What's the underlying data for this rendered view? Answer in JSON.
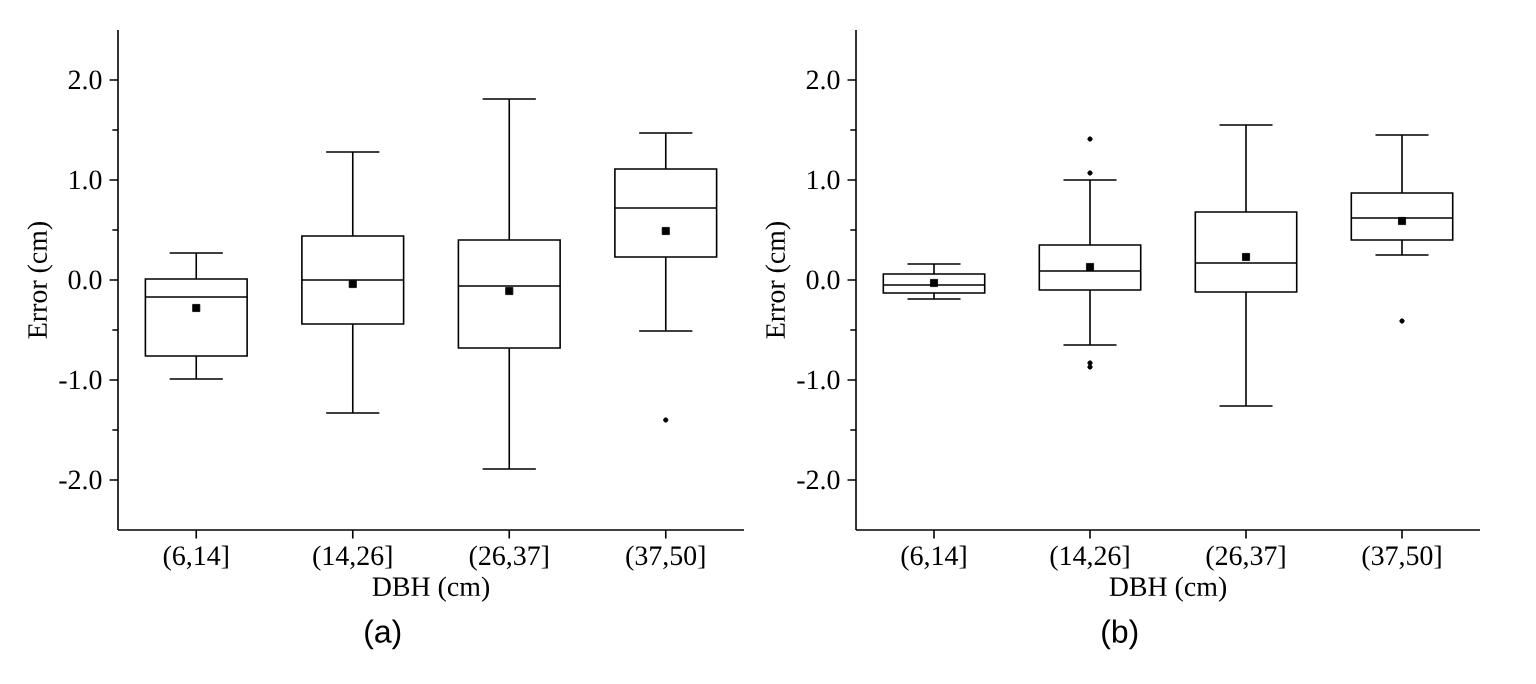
{
  "chart_data": [
    {
      "type": "box",
      "xlabel": "DBH (cm)",
      "ylabel": "Error (cm)",
      "annotations": [
        "(a)"
      ],
      "categories": [
        "(6,14]",
        "(14,26]",
        "(26,37]",
        "(37,50]"
      ],
      "boxes": [
        {
          "low": -0.99,
          "q1": -0.76,
          "median": -0.17,
          "q3": 0.01,
          "high": 0.27,
          "mean": -0.28
        },
        {
          "low": -1.33,
          "q1": -0.44,
          "median": 0.0,
          "q3": 0.44,
          "high": 1.28,
          "mean": -0.04
        },
        {
          "low": -1.89,
          "q1": -0.68,
          "median": -0.06,
          "q3": 0.4,
          "high": 1.81,
          "mean": -0.11
        },
        {
          "low": -0.51,
          "q1": 0.23,
          "median": 0.72,
          "q3": 1.11,
          "high": 1.47,
          "mean": 0.49,
          "outliers": [
            -1.4
          ]
        }
      ],
      "ylim": [
        -2.5,
        2.5
      ],
      "yticks": [
        {
          "value": -2,
          "label": "-2.0"
        },
        {
          "value": -1,
          "label": "-1.0"
        },
        {
          "value": 0,
          "label": "0.0"
        },
        {
          "value": 1,
          "label": "1.0"
        },
        {
          "value": 2,
          "label": "2.0"
        }
      ]
    },
    {
      "type": "box",
      "xlabel": "DBH (cm)",
      "ylabel": "Error (cm)",
      "annotations": [
        "(b)"
      ],
      "categories": [
        "(6,14]",
        "(14,26]",
        "(26,37]",
        "(37,50]"
      ],
      "boxes": [
        {
          "low": -0.19,
          "q1": -0.13,
          "median": -0.05,
          "q3": 0.06,
          "high": 0.16,
          "mean": -0.03
        },
        {
          "low": -0.65,
          "q1": -0.1,
          "median": 0.09,
          "q3": 0.35,
          "high": 1.0,
          "mean": 0.13,
          "outliers": [
            1.41,
            1.07,
            -0.83,
            -0.87
          ]
        },
        {
          "low": -1.26,
          "q1": -0.12,
          "median": 0.17,
          "q3": 0.68,
          "high": 1.55,
          "mean": 0.23
        },
        {
          "low": 0.25,
          "q1": 0.4,
          "median": 0.62,
          "q3": 0.87,
          "high": 1.45,
          "mean": 0.59,
          "outliers": [
            -0.41
          ]
        }
      ],
      "ylim": [
        -2.5,
        2.5
      ],
      "yticks": [
        {
          "value": -2,
          "label": "-2.0"
        },
        {
          "value": -1,
          "label": "-1.0"
        },
        {
          "value": 0,
          "label": "0.0"
        },
        {
          "value": 1,
          "label": "1.0"
        },
        {
          "value": 2,
          "label": "2.0"
        }
      ]
    }
  ]
}
